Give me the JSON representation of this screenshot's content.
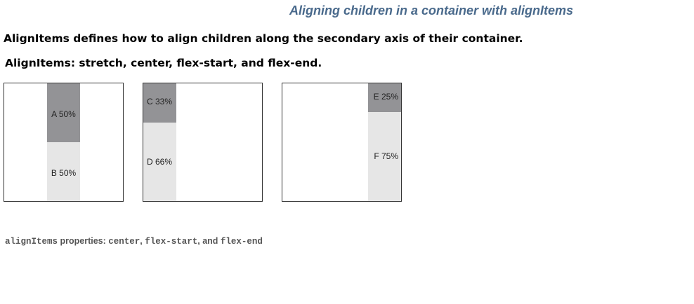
{
  "header": {
    "title": "Aligning children in a container with alignItems"
  },
  "body": {
    "line1": "AlignItems defines how to align children along the secondary axis of their container.",
    "line2": "AlignItems: stretch, center, flex-start, and flex-end."
  },
  "boxes": [
    {
      "items": [
        {
          "label": "A 50%",
          "fraction": 0.5,
          "shade": "dark"
        },
        {
          "label": "B 50%",
          "fraction": 0.5,
          "shade": "light"
        }
      ]
    },
    {
      "items": [
        {
          "label": "C 33%",
          "fraction": 0.33,
          "shade": "dark"
        },
        {
          "label": "D 66%",
          "fraction": 0.66,
          "shade": "light"
        }
      ]
    },
    {
      "items": [
        {
          "label": "E 25%",
          "fraction": 0.25,
          "shade": "dark"
        },
        {
          "label": "F 75%",
          "fraction": 0.75,
          "shade": "light"
        }
      ]
    }
  ],
  "caption": {
    "code1": "alignItems",
    "text1": " properties: ",
    "code2": "center",
    "text2": ", ",
    "code3": "flex-start",
    "text3": ", and ",
    "code4": "flex-end"
  },
  "colors": {
    "title": "#4a6a8c",
    "dark_block": "#939396",
    "light_block": "#e6e6e6"
  }
}
